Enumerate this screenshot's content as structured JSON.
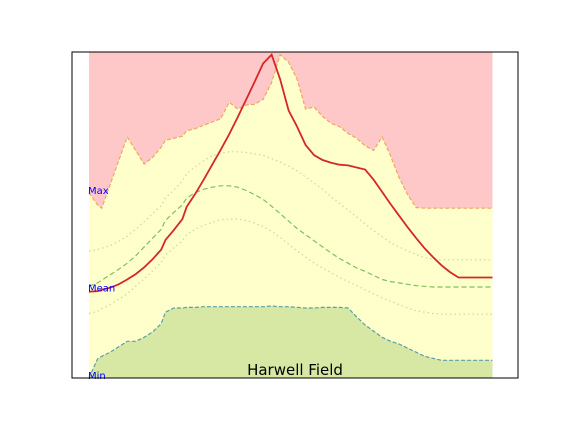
{
  "chart_data": {
    "type": "area",
    "title": "Harwell Field",
    "xlabel": "",
    "ylabel": "",
    "x": [
      1,
      3,
      4,
      6,
      8,
      10,
      12,
      14,
      16,
      18,
      19,
      21,
      23,
      24,
      26,
      28,
      30,
      32,
      34,
      36,
      38,
      40,
      42,
      44,
      46,
      48,
      50,
      52,
      54,
      56,
      58,
      60,
      62,
      64,
      66,
      68,
      70,
      72,
      74,
      76,
      78,
      80,
      82,
      84,
      86,
      88,
      90,
      92,
      94,
      96
    ],
    "xlim": [
      -3,
      102
    ],
    "ylim": [
      -10,
      38
    ],
    "annotations": [
      {
        "text": "Max",
        "y": 17.5
      },
      {
        "text": "Mean",
        "y": 3.2
      },
      {
        "text": "Min",
        "y": -10
      }
    ],
    "series": [
      {
        "role": "record-high-band",
        "fill": "#ffc8c8",
        "edge": "#f4a460",
        "values": [
          17.3,
          15.5,
          15.0,
          18.5,
          22.0,
          25.5,
          23.5,
          21.5,
          22.5,
          24.0,
          25.0,
          25.3,
          25.6,
          26.4,
          26.7,
          27.2,
          27.7,
          28.2,
          30.6,
          29.6,
          30.2,
          30.3,
          31.0,
          33.5,
          37.6,
          36.5,
          34.0,
          29.6,
          29.9,
          28.5,
          27.5,
          27.0,
          26.0,
          25.3,
          24.2,
          23.5,
          25.5,
          22.7,
          19.5,
          17.0,
          15.1,
          15.0,
          15.0,
          15.0,
          15.0,
          15.0,
          15.0,
          15.0,
          15.0,
          15.0
        ]
      },
      {
        "role": "record-low-band",
        "fill": "#d6e8a4",
        "edge": "#5f9ea0",
        "values": [
          -10.0,
          -7.2,
          -6.8,
          -6.2,
          -5.4,
          -4.6,
          -4.6,
          -4.0,
          -3.2,
          -2.0,
          -0.3,
          0.3,
          0.3,
          0.4,
          0.4,
          0.5,
          0.5,
          0.5,
          0.5,
          0.5,
          0.5,
          0.5,
          0.5,
          0.6,
          0.5,
          0.5,
          0.4,
          0.3,
          0.3,
          0.4,
          0.4,
          0.4,
          0.3,
          -1.0,
          -2.2,
          -3.1,
          -4.0,
          -4.6,
          -5.0,
          -5.6,
          -6.2,
          -6.8,
          -7.1,
          -7.4,
          -7.4,
          -7.4,
          -7.4,
          -7.4,
          -7.4,
          -7.4
        ]
      },
      {
        "role": "upper-percentile",
        "color": "#c8dc8c",
        "dash": "dotted",
        "values": [
          8.7,
          8.9,
          9.1,
          9.5,
          10.1,
          10.9,
          11.9,
          13.0,
          14.2,
          15.4,
          16.5,
          17.7,
          19.0,
          20.1,
          21.1,
          22.0,
          22.7,
          23.1,
          23.3,
          23.3,
          23.2,
          23.0,
          22.8,
          22.3,
          21.8,
          21.2,
          20.5,
          19.6,
          18.7,
          17.8,
          16.7,
          15.7,
          14.7,
          13.7,
          12.7,
          11.7,
          10.8,
          9.9,
          9.3,
          8.7,
          8.2,
          7.7,
          7.5,
          7.4,
          7.4,
          7.4,
          7.4,
          7.4,
          7.4,
          7.4
        ]
      },
      {
        "role": "mean",
        "color": "#7fbf5f",
        "dash": "dashed",
        "values": [
          3.5,
          4.0,
          4.4,
          5.2,
          6.0,
          6.9,
          8.0,
          9.3,
          10.6,
          11.9,
          13.2,
          14.4,
          15.5,
          16.5,
          17.3,
          17.8,
          18.1,
          18.3,
          18.3,
          18.1,
          17.6,
          17.0,
          16.3,
          15.3,
          14.2,
          13.1,
          12.0,
          11.1,
          10.2,
          9.3,
          8.4,
          7.6,
          6.9,
          6.2,
          5.7,
          5.1,
          4.5,
          4.2,
          4.0,
          3.8,
          3.6,
          3.5,
          3.4,
          3.4,
          3.4,
          3.4,
          3.4,
          3.4,
          3.4,
          3.4
        ]
      },
      {
        "role": "lower-percentile",
        "color": "#c8dc8c",
        "dash": "dotted",
        "values": [
          -0.5,
          -0.2,
          0.2,
          0.8,
          1.6,
          2.4,
          3.5,
          4.6,
          5.8,
          7.0,
          8.1,
          9.2,
          10.2,
          11.1,
          11.9,
          12.5,
          12.9,
          13.3,
          13.4,
          13.4,
          13.2,
          12.8,
          12.3,
          11.6,
          10.7,
          9.7,
          8.7,
          7.8,
          6.9,
          6.2,
          5.5,
          4.8,
          4.2,
          3.6,
          3.0,
          2.4,
          1.8,
          1.3,
          0.8,
          0.3,
          -0.1,
          -0.3,
          -0.5,
          -0.6,
          -0.6,
          -0.6,
          -0.6,
          -0.6,
          -0.6,
          -0.6
        ]
      },
      {
        "role": "actual",
        "color": "#d62728",
        "dash": "solid",
        "values": [
          2.7,
          2.8,
          3.0,
          3.3,
          3.8,
          4.5,
          5.3,
          6.3,
          7.5,
          8.9,
          10.3,
          11.8,
          13.4,
          15.2,
          17.1,
          19.2,
          21.4,
          23.6,
          25.9,
          28.4,
          31.0,
          33.6,
          36.3,
          37.6,
          34.0,
          29.4,
          27.0,
          24.3,
          22.8,
          22.1,
          21.7,
          21.4,
          21.3,
          21.0,
          20.7,
          19.2,
          17.4,
          15.6,
          13.9,
          12.2,
          10.6,
          9.1,
          7.8,
          6.6,
          5.6,
          4.8,
          4.8,
          4.8,
          4.8,
          4.8
        ]
      }
    ]
  }
}
